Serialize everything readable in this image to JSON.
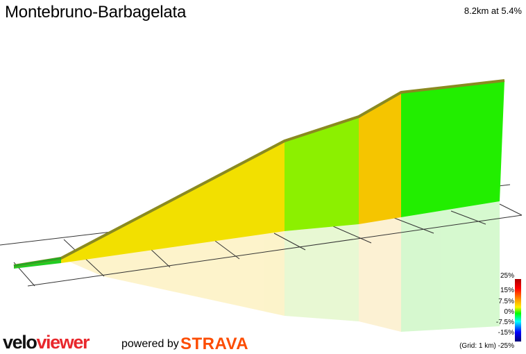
{
  "header": {
    "title": "Montebruno-Barbagelata",
    "summary": "8.2km at 5.4%"
  },
  "legend": {
    "labels": [
      "25%",
      "15%",
      "7.5%",
      "0%",
      "-7.5%",
      "-15%"
    ],
    "grid_note": "(Grid: 1 km) -25%",
    "gradient_colors": [
      "#cc0000",
      "#ff0000",
      "#ff9900",
      "#ffff00",
      "#00ff00",
      "#00ffff",
      "#0000ff",
      "#000088"
    ]
  },
  "branding": {
    "logo_part1": "velo",
    "logo_part2": "viewer",
    "powered_by": "powered by",
    "strava": "STRAVA"
  },
  "segments": [
    {
      "name": "start",
      "color": "#22cc22",
      "gradient_percent": 1
    },
    {
      "name": "climb-1",
      "color": "#f2e000",
      "gradient_percent": 6.5
    },
    {
      "name": "climb-2",
      "color": "#8cf000",
      "gradient_percent": 4.0
    },
    {
      "name": "climb-3",
      "color": "#f5c500",
      "gradient_percent": 8.5
    },
    {
      "name": "climb-4",
      "color": "#22ee00",
      "gradient_percent": 2.0
    }
  ],
  "colors": {
    "grid_line": "#333333",
    "edge": "#8a8a20"
  }
}
